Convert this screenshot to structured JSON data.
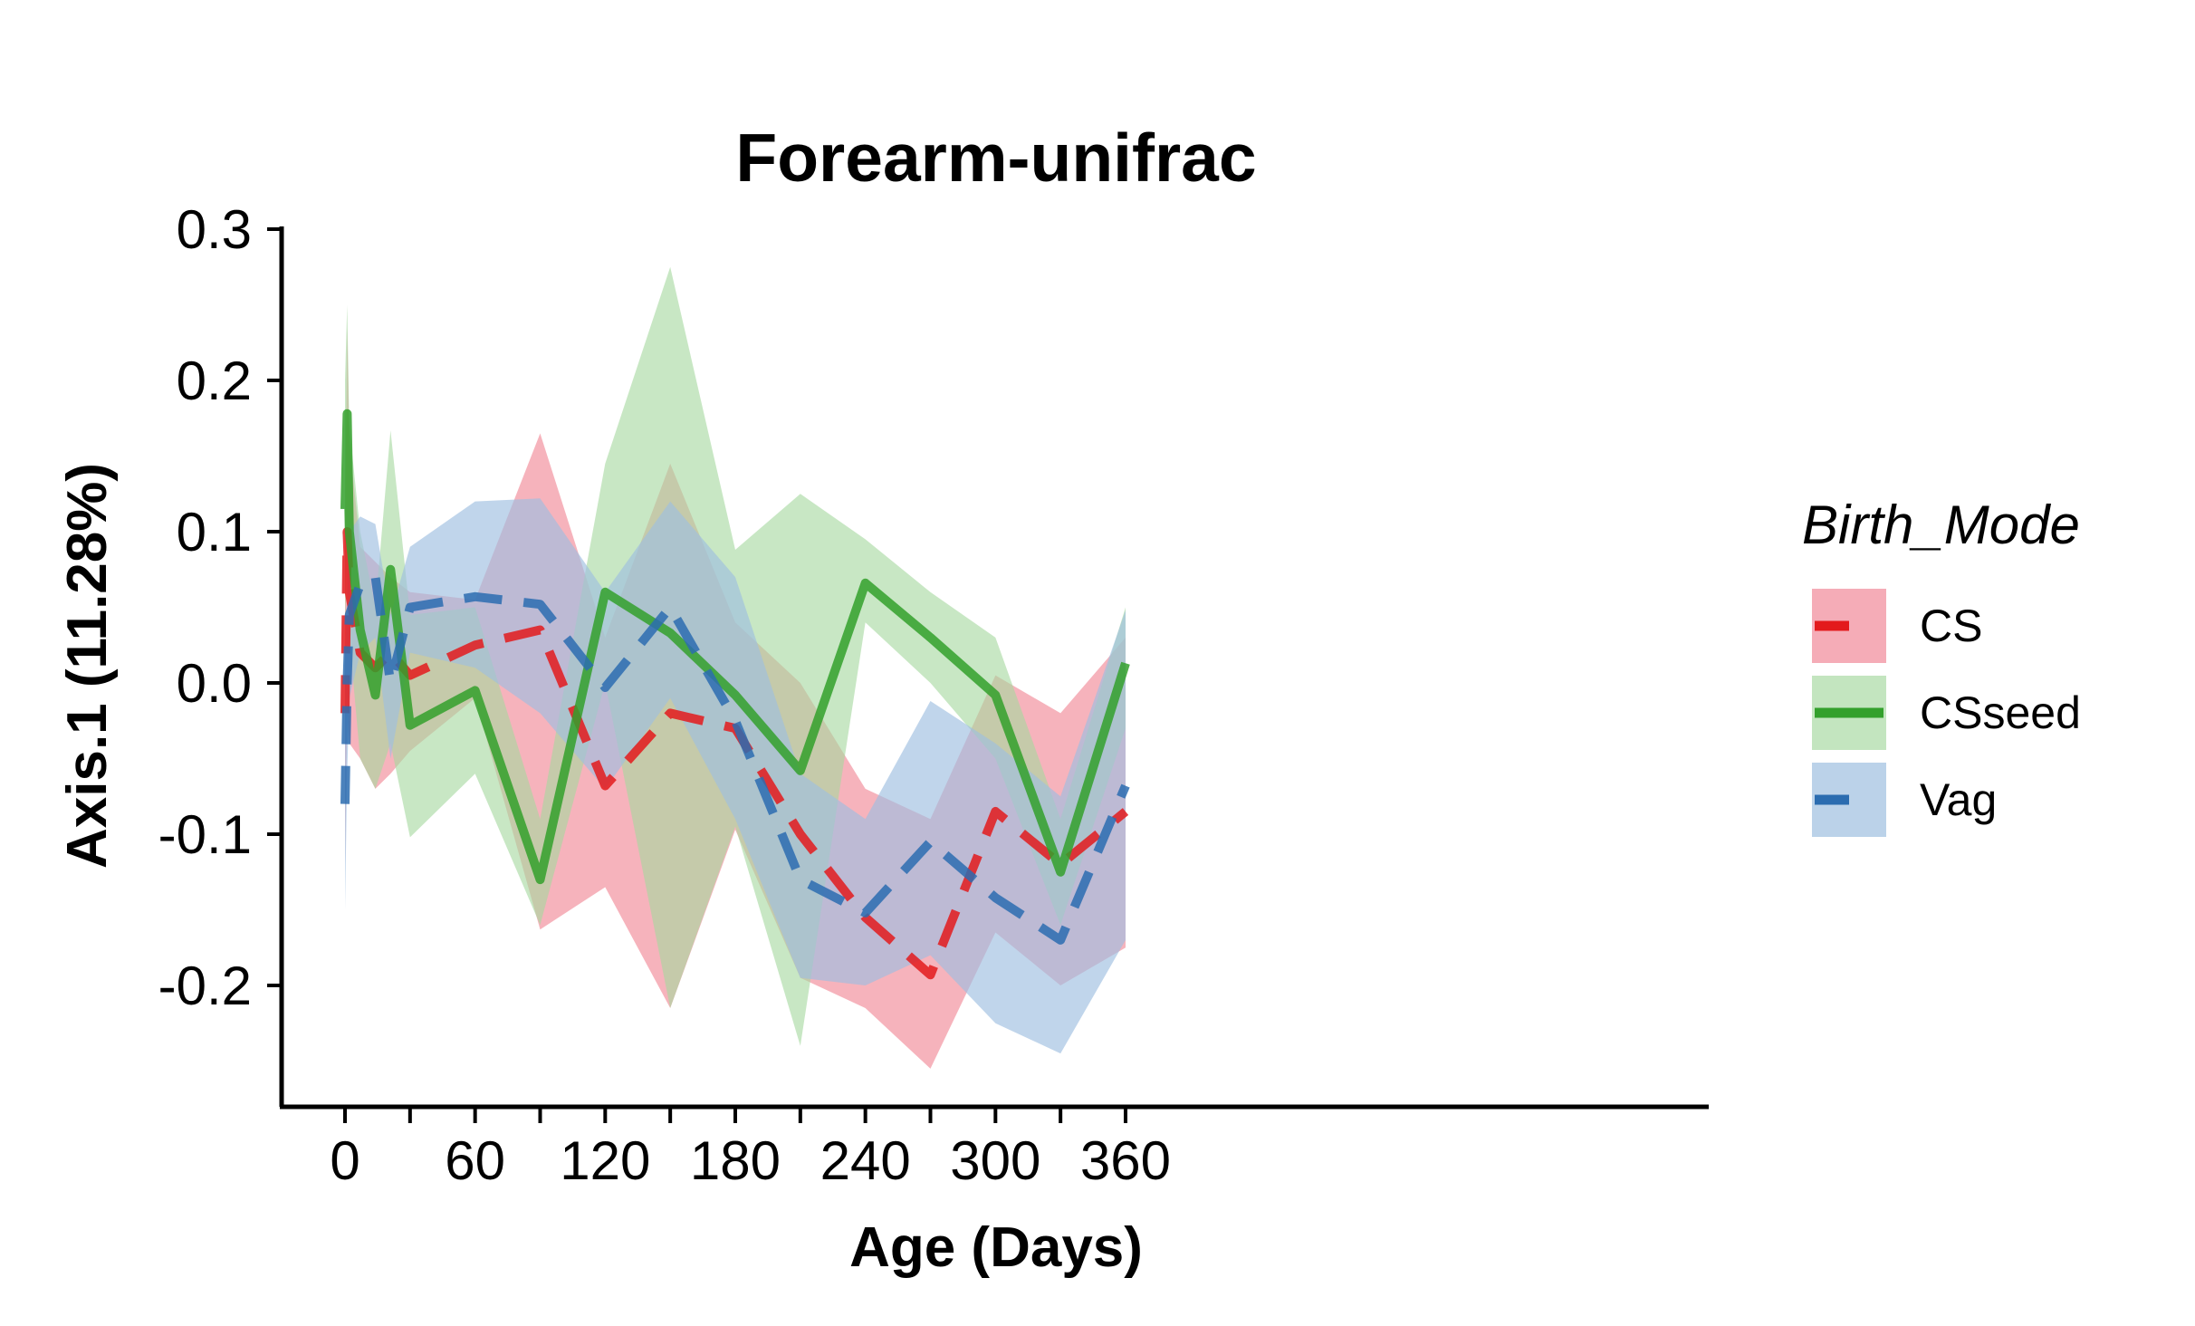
{
  "chart_data": {
    "type": "line",
    "title": "Forearm-unifrac",
    "xlabel": "Age (Days)",
    "ylabel": "Axis.1 (11.28%)",
    "xlim": [
      -7,
      375
    ],
    "ylim": [
      -0.28,
      0.3
    ],
    "xticks": [
      0,
      30,
      60,
      90,
      120,
      150,
      180,
      210,
      240,
      270,
      300,
      330,
      360
    ],
    "xtick_labels": [
      "0",
      "",
      "60",
      "",
      "120",
      "",
      "180",
      "",
      "240",
      "",
      "300",
      "",
      "360"
    ],
    "yticks": [
      -0.2,
      -0.1,
      0.0,
      0.1,
      0.2,
      0.3
    ],
    "ytick_labels": [
      "-0.2",
      "-0.1",
      "0.0",
      "0.1",
      "0.2",
      "0.3"
    ],
    "grid": false,
    "legend": {
      "title": "Birth_Mode",
      "position": "right"
    },
    "series": [
      {
        "name": "CS",
        "color": "#e31a1c",
        "fill": "#f08090",
        "fill_opacity": 0.6,
        "dash": "dashed",
        "x": [
          0,
          1,
          2,
          7,
          14,
          21,
          30,
          60,
          90,
          120,
          150,
          180,
          210,
          240,
          270,
          300,
          330,
          360
        ],
        "y": [
          -0.02,
          0.1,
          0.06,
          0.02,
          0.01,
          0.02,
          0.005,
          0.025,
          0.035,
          -0.068,
          -0.02,
          -0.03,
          -0.1,
          -0.155,
          -0.193,
          -0.085,
          -0.12,
          -0.085
        ],
        "lower": [
          -0.12,
          -0.02,
          -0.04,
          -0.05,
          -0.07,
          -0.06,
          -0.045,
          -0.01,
          -0.163,
          -0.135,
          -0.215,
          -0.097,
          -0.195,
          -0.215,
          -0.255,
          -0.165,
          -0.2,
          -0.175
        ],
        "upper": [
          0.1,
          0.235,
          0.16,
          0.09,
          0.08,
          0.07,
          0.06,
          0.055,
          0.165,
          0.03,
          0.145,
          0.04,
          0.0,
          -0.07,
          -0.09,
          0.005,
          -0.02,
          0.03
        ]
      },
      {
        "name": "CSseed",
        "color": "#33a02c",
        "fill": "#a6d8a0",
        "fill_opacity": 0.62,
        "dash": "solid",
        "x": [
          0,
          1,
          2,
          7,
          14,
          21,
          30,
          60,
          90,
          120,
          150,
          180,
          210,
          240,
          270,
          300,
          330,
          360
        ],
        "y": [
          0.115,
          0.178,
          0.1,
          0.035,
          -0.008,
          0.075,
          -0.028,
          -0.005,
          -0.13,
          0.06,
          0.033,
          -0.008,
          -0.058,
          0.066,
          0.03,
          -0.008,
          -0.125,
          0.013
        ],
        "lower": [
          0.03,
          0.1,
          0.03,
          -0.05,
          -0.07,
          -0.04,
          -0.102,
          -0.06,
          -0.16,
          0.0,
          -0.215,
          -0.095,
          -0.24,
          0.04,
          0.0,
          -0.05,
          -0.16,
          -0.03
        ],
        "upper": [
          0.2,
          0.25,
          0.17,
          0.1,
          0.05,
          0.167,
          0.045,
          0.05,
          -0.09,
          0.145,
          0.275,
          0.088,
          0.125,
          0.095,
          0.06,
          0.03,
          -0.09,
          0.05
        ]
      },
      {
        "name": "Vag",
        "color": "#2b6cb0",
        "fill": "#9ebfe0",
        "fill_opacity": 0.65,
        "dash": "dashed",
        "x": [
          0,
          1,
          2,
          7,
          14,
          21,
          30,
          60,
          90,
          120,
          150,
          180,
          210,
          240,
          270,
          300,
          330,
          360
        ],
        "y": [
          -0.08,
          0.0,
          0.045,
          0.065,
          0.07,
          0.0,
          0.05,
          0.057,
          0.052,
          -0.003,
          0.05,
          -0.025,
          -0.13,
          -0.152,
          -0.105,
          -0.142,
          -0.17,
          -0.068
        ],
        "lower": [
          -0.15,
          -0.06,
          -0.01,
          0.02,
          0.03,
          -0.05,
          0.02,
          0.01,
          -0.02,
          -0.07,
          -0.01,
          -0.09,
          -0.195,
          -0.2,
          -0.18,
          -0.225,
          -0.245,
          -0.17
        ],
        "upper": [
          0.02,
          0.06,
          0.1,
          0.11,
          0.105,
          0.045,
          0.09,
          0.12,
          0.122,
          0.06,
          0.12,
          0.07,
          -0.06,
          -0.09,
          -0.012,
          -0.04,
          -0.075,
          0.048
        ]
      }
    ]
  }
}
